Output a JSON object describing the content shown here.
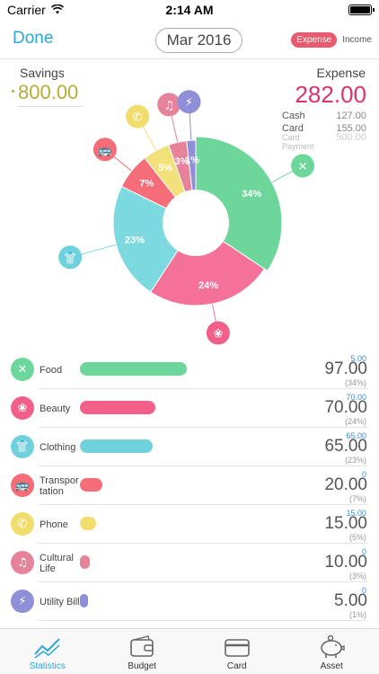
{
  "status_bar": {
    "carrier": "Carrier",
    "time": "2:14 AM"
  },
  "nav": {
    "done_label": "Done",
    "month": "Mar 2016",
    "toggle_expense": "Expense",
    "toggle_income": "Income"
  },
  "summary": {
    "savings_label": "Savings",
    "savings_value": "800.00",
    "expense_label": "Expense",
    "expense_value": "282.00",
    "payments": [
      {
        "label": "Cash",
        "value": "127.00",
        "muted": false
      },
      {
        "label": "Card",
        "value": "155.00",
        "muted": false
      },
      {
        "label": "Card Payment",
        "value": "500.00",
        "muted": true
      }
    ]
  },
  "chart_data": {
    "type": "pie",
    "categories": [
      "Food",
      "Beauty",
      "Clothing",
      "Transportation",
      "Phone",
      "Cultural Life",
      "Utility Bill"
    ],
    "values": [
      97,
      70,
      65,
      20,
      15,
      10,
      5
    ],
    "labels": [
      "34%",
      "24%",
      "23%",
      "7%",
      "5%",
      "3%",
      "1%"
    ],
    "colors": [
      "#6dd69a",
      "#f4729a",
      "#7dd9e0",
      "#f46d78",
      "#f2e07a",
      "#e6829a",
      "#8e8fd6"
    ]
  },
  "categories": [
    {
      "name": "Food",
      "icon": "utensils-icon",
      "glyph": "✕",
      "color": "#6dd69a",
      "budget": "5.00",
      "amount": "97.00",
      "percent": "(34%)",
      "fraction": 0.34
    },
    {
      "name": "Beauty",
      "icon": "beauty-icon",
      "glyph": "❀",
      "color": "#f25f88",
      "budget": "70.00",
      "amount": "70.00",
      "percent": "(24%)",
      "fraction": 0.24
    },
    {
      "name": "Clothing",
      "icon": "shirt-icon",
      "glyph": "👕",
      "color": "#6fd1dc",
      "budget": "65.00",
      "amount": "65.00",
      "percent": "(23%)",
      "fraction": 0.23
    },
    {
      "name": "Transportation",
      "icon": "bus-icon",
      "glyph": "🚌",
      "color": "#f46d78",
      "budget": "0",
      "amount": "20.00",
      "percent": "(7%)",
      "fraction": 0.07
    },
    {
      "name": "Phone",
      "icon": "phone-icon",
      "glyph": "✆",
      "color": "#f0dd6e",
      "budget": "15.00",
      "amount": "15.00",
      "percent": "(5%)",
      "fraction": 0.05
    },
    {
      "name": "Cultural Life",
      "icon": "music-icon",
      "glyph": "♫",
      "color": "#e6829a",
      "budget": "0",
      "amount": "10.00",
      "percent": "(3%)",
      "fraction": 0.03
    },
    {
      "name": "Utility Bill",
      "icon": "plug-icon",
      "glyph": "⚡",
      "color": "#8e8fd6",
      "budget": "0",
      "amount": "5.00",
      "percent": "(1%)",
      "fraction": 0.01
    }
  ],
  "tabs": [
    {
      "label": "Statistics",
      "icon": "chart-icon",
      "active": true
    },
    {
      "label": "Budget",
      "icon": "wallet-icon",
      "active": false
    },
    {
      "label": "Card",
      "icon": "card-icon",
      "active": false
    },
    {
      "label": "Asset",
      "icon": "piggy-bank-icon",
      "active": false
    }
  ]
}
